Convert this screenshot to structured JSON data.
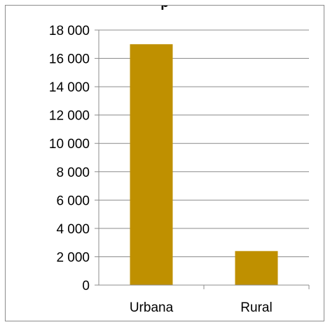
{
  "chart_data": {
    "type": "bar",
    "title": "p",
    "xlabel": "",
    "ylabel": "",
    "categories": [
      "Urbana",
      "Rural"
    ],
    "values": [
      17000,
      2400
    ],
    "ylim": [
      0,
      18000
    ],
    "yticks": [
      "0",
      "2 000",
      "4 000",
      "6 000",
      "8 000",
      "10 000",
      "12 000",
      "14 000",
      "16 000",
      "18 000"
    ],
    "grid": true,
    "legend": "none",
    "colors": {
      "bar": "#bf9000",
      "grid": "#8c8c8c",
      "axis": "#8c8c8c"
    }
  }
}
